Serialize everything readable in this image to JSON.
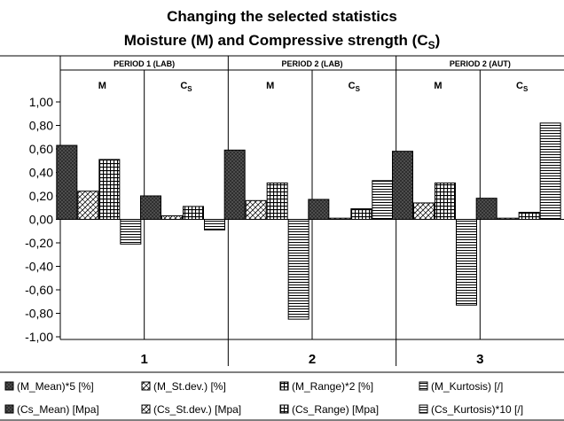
{
  "chart_data": {
    "type": "bar",
    "title": "Changing the selected statistics",
    "subtitle": {
      "prefix": "Moisture (M) and Compressive strength (C",
      "sub": "S",
      "suffix": ")"
    },
    "categories": [
      "1",
      "2",
      "3"
    ],
    "periods": [
      "PERIOD 1 (LAB)",
      "PERIOD 2 (LAB)",
      "PERIOD 2 (AUT)"
    ],
    "group_labels": [
      {
        "main": "M",
        "sub": ""
      },
      {
        "main": "C",
        "sub": "S"
      }
    ],
    "ylim": [
      -1.0,
      1.0
    ],
    "yticks": [
      "1,00",
      "0,80",
      "0,60",
      "0,40",
      "0,20",
      "0,00",
      "-0,20",
      "-0,40",
      "-0,60",
      "-0,80",
      "-1,00"
    ],
    "series": [
      {
        "name": "(M_Mean)*5 [%]",
        "group": 0,
        "pattern": "dense",
        "values": [
          0.63,
          0.59,
          0.58
        ]
      },
      {
        "name": "(M_St.dev.) [%]",
        "group": 0,
        "pattern": "diag",
        "values": [
          0.24,
          0.16,
          0.14
        ]
      },
      {
        "name": "(M_Range)*2 [%]",
        "group": 0,
        "pattern": "grid",
        "values": [
          0.51,
          0.31,
          0.31
        ]
      },
      {
        "name": "(M_Kurtosis) [/]",
        "group": 0,
        "pattern": "hlines",
        "values": [
          -0.21,
          -0.85,
          -0.73
        ]
      },
      {
        "name": "(Cs_Mean) [Mpa]",
        "group": 1,
        "pattern": "dense",
        "values": [
          0.2,
          0.17,
          0.18
        ]
      },
      {
        "name": "(Cs_St.dev.) [Mpa]",
        "group": 1,
        "pattern": "diag",
        "values": [
          0.03,
          0.01,
          0.01
        ]
      },
      {
        "name": "(Cs_Range) [Mpa]",
        "group": 1,
        "pattern": "grid",
        "values": [
          0.11,
          0.09,
          0.06
        ]
      },
      {
        "name": "(Cs_Kurtosis)*10 [/]",
        "group": 1,
        "pattern": "hlines",
        "values": [
          -0.09,
          0.33,
          0.82
        ]
      }
    ],
    "grid": false,
    "legend_position": "bottom"
  }
}
